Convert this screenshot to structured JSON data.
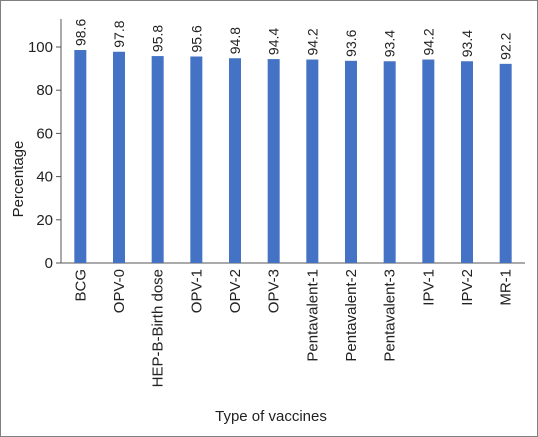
{
  "chart_data": {
    "type": "bar",
    "title": "",
    "xlabel": "Type of vaccines",
    "ylabel": "Percentage",
    "ylim": [
      0,
      100
    ],
    "yticks": [
      0,
      20,
      40,
      60,
      80,
      100
    ],
    "categories": [
      "BCG",
      "OPV-0",
      "HEP-B-Birth dose",
      "OPV-1",
      "OPV-2",
      "OPV-3",
      "Pentavalent-1",
      "Pentavalent-2",
      "Pentavalent-3",
      "IPV-1",
      "IPV-2",
      "MR-1"
    ],
    "values": [
      98.6,
      97.8,
      95.8,
      95.6,
      94.8,
      94.4,
      94.2,
      93.6,
      93.4,
      94.2,
      93.4,
      92.2
    ],
    "data_labels": [
      "98.6",
      "97.8",
      "95.8",
      "95.6",
      "94.8",
      "94.4",
      "94.2",
      "93.6",
      "93.4",
      "94.2",
      "93.4",
      "92.2"
    ],
    "bar_color": "#4472c4",
    "grid": false,
    "legend": "none"
  }
}
